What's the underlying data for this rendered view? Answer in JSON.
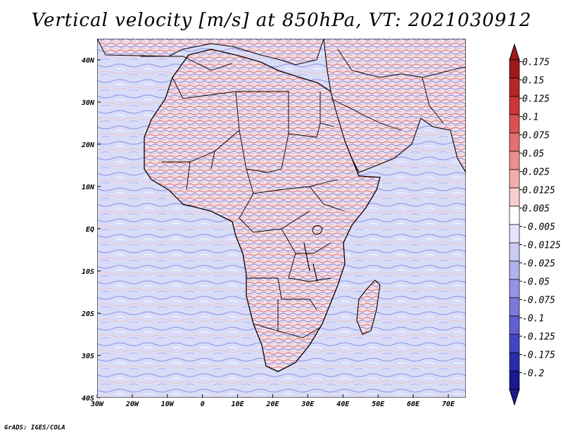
{
  "title": "Vertical velocity [m/s] at 850hPa, VT: 2021030912",
  "credit": "GrADS: IGES/COLA",
  "map": {
    "lon_ticks": [
      "30W",
      "20W",
      "10W",
      "0",
      "10E",
      "20E",
      "30E",
      "40E",
      "50E",
      "60E",
      "70E"
    ],
    "lat_ticks": [
      "40N",
      "30N",
      "20N",
      "10N",
      "EQ",
      "10S",
      "20S",
      "30S",
      "40S"
    ],
    "lon_range": [
      -30,
      75
    ],
    "lat_range": [
      -40,
      45
    ]
  },
  "colorbar": {
    "labels": [
      "0.175",
      "0.15",
      "0.125",
      "0.1",
      "0.075",
      "0.05",
      "0.025",
      "0.0125",
      "0.005",
      "-0.005",
      "-0.0125",
      "-0.025",
      "-0.05",
      "-0.075",
      "-0.1",
      "-0.125",
      "-0.175",
      "-0.2"
    ],
    "colors": [
      "#a01818",
      "#b92525",
      "#cf3535",
      "#dd5050",
      "#e66e6e",
      "#ee8e8e",
      "#f4adad",
      "#f9cdcd",
      "#ffffff",
      "#e4e4fb",
      "#cbcbf4",
      "#b1b1ee",
      "#9595e6",
      "#7a7add",
      "#6060d3",
      "#4545c4",
      "#2b2bb0",
      "#1a1a8e"
    ],
    "top_color": "#a01818",
    "bottom_color": "#1a1a8e"
  },
  "colors": {
    "ocean": "#d9dcf7",
    "land": "#ece1ea",
    "positive": "#e8585a",
    "negative": "#6a6be0",
    "boundary": "#000000"
  }
}
